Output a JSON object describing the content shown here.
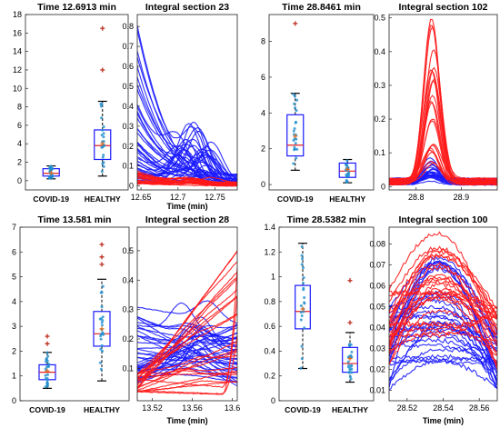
{
  "panels": [
    {
      "kind": "box",
      "title": "Time 12.6913 min",
      "ylim": [
        -1,
        18
      ],
      "yticks": [
        0,
        2,
        4,
        6,
        8,
        10,
        12,
        14,
        16,
        18
      ],
      "categories": [
        "COVID-19",
        "HEALTHY"
      ],
      "boxes": [
        {
          "whisker_low": 0.2,
          "q1": 0.5,
          "median": 0.8,
          "mean": 0.85,
          "q3": 1.3,
          "whisker_high": 1.6,
          "outliers": []
        },
        {
          "whisker_low": 0.5,
          "q1": 2.3,
          "median": 3.8,
          "mean": 4.0,
          "q3": 5.5,
          "whisker_high": 8.6,
          "outliers": [
            12.0,
            16.5
          ]
        }
      ]
    },
    {
      "kind": "lines",
      "title": "Integral section 23",
      "xlim": [
        12.645,
        12.78
      ],
      "ylim": [
        -0.02,
        0.86
      ],
      "xticks": [
        12.65,
        12.7,
        12.75
      ],
      "xticklabels": [
        "12.65",
        "12.7",
        "12.75"
      ],
      "yticks": [
        0,
        0.1,
        0.2,
        0.3,
        0.4,
        0.5,
        0.6,
        0.7,
        0.8
      ],
      "xlabel": "Time (min)",
      "shape": "decay",
      "groups": [
        {
          "color": "#1a1aff",
          "count": 42,
          "start": [
            0.03,
            0.85
          ],
          "end": [
            0.0,
            0.06
          ],
          "hump": [
            0.0,
            0.3
          ]
        },
        {
          "color": "#ff1a1a",
          "count": 24,
          "start": [
            0.01,
            0.08
          ],
          "end": [
            0.0,
            0.02
          ],
          "hump": [
            0.0,
            0.03
          ]
        }
      ]
    },
    {
      "kind": "box",
      "title": "Time 28.8461 min",
      "ylim": [
        -0.3,
        9.5
      ],
      "yticks": [
        0,
        2,
        4,
        6,
        8
      ],
      "categories": [
        "COVID-19",
        "HEALTHY"
      ],
      "boxes": [
        {
          "whisker_low": 0.8,
          "q1": 1.6,
          "median": 2.2,
          "mean": 2.7,
          "q3": 3.9,
          "whisker_high": 5.1,
          "outliers": [
            9.0
          ]
        },
        {
          "whisker_low": 0.1,
          "q1": 0.4,
          "median": 0.75,
          "mean": 0.85,
          "q3": 1.2,
          "whisker_high": 1.4,
          "outliers": []
        }
      ]
    },
    {
      "kind": "lines",
      "title": "Integral section 102",
      "xlim": [
        28.74,
        28.98
      ],
      "ylim": [
        -0.01,
        0.51
      ],
      "xticks": [
        28.8,
        28.9
      ],
      "xticklabels": [
        "28.8",
        "28.9"
      ],
      "yticks": [
        0,
        0.1,
        0.2,
        0.3,
        0.4,
        0.5
      ],
      "xlabel": "",
      "shape": "peak",
      "groups": [
        {
          "color": "#1a1aff",
          "count": 26,
          "peak": [
            0.01,
            0.07
          ]
        },
        {
          "color": "#ff1a1a",
          "count": 22,
          "peak": [
            0.05,
            0.49
          ]
        }
      ]
    },
    {
      "kind": "box",
      "title": "Time 13.581 min",
      "ylim": [
        0,
        7
      ],
      "yticks": [
        0,
        1,
        2,
        3,
        4,
        5,
        6,
        7
      ],
      "categories": [
        "COVID-19",
        "HEALTHY"
      ],
      "boxes": [
        {
          "whisker_low": 0.5,
          "q1": 0.85,
          "median": 1.15,
          "mean": 1.2,
          "q3": 1.45,
          "whisker_high": 1.95,
          "outliers": [
            2.3,
            2.6
          ]
        },
        {
          "whisker_low": 0.8,
          "q1": 2.2,
          "median": 2.7,
          "mean": 2.9,
          "q3": 3.6,
          "whisker_high": 4.9,
          "outliers": [
            5.5,
            5.8,
            6.3
          ]
        }
      ]
    },
    {
      "kind": "lines",
      "title": "Integral section 28",
      "xlim": [
        13.505,
        13.605
      ],
      "ylim": [
        -0.01,
        0.58
      ],
      "xticks": [
        13.52,
        13.56,
        13.6
      ],
      "xticklabels": [
        "13.52",
        "13.56",
        "13.6"
      ],
      "yticks": [
        0.1,
        0.2,
        0.3,
        0.4,
        0.5
      ],
      "xlabel": "Time (min)",
      "shape": "wave",
      "groups": [
        {
          "color": "#1a1aff",
          "count": 38,
          "start": [
            0.05,
            0.33
          ],
          "end": [
            0.04,
            0.26
          ],
          "hump": [
            0.0,
            0.1
          ]
        },
        {
          "color": "#ff1a1a",
          "count": 24,
          "start": [
            0.02,
            0.09
          ],
          "end": [
            0.02,
            0.55
          ],
          "hump": [
            0.0,
            0.02
          ]
        }
      ]
    },
    {
      "kind": "box",
      "title": "Time 28.5382 min",
      "ylim": [
        0,
        1.4
      ],
      "yticks": [
        0,
        0.2,
        0.4,
        0.6,
        0.8,
        1,
        1.2,
        1.4
      ],
      "yticklabels": [
        "0",
        "0.2",
        "0.4",
        "0.6",
        "0.8",
        "1",
        "1.2",
        "1.4"
      ],
      "categories": [
        "COVID-19",
        "HEALTHY"
      ],
      "boxes": [
        {
          "whisker_low": 0.26,
          "q1": 0.58,
          "median": 0.72,
          "mean": 0.74,
          "q3": 0.93,
          "whisker_high": 1.27,
          "outliers": []
        },
        {
          "whisker_low": 0.15,
          "q1": 0.23,
          "median": 0.3,
          "mean": 0.34,
          "q3": 0.43,
          "whisker_high": 0.55,
          "outliers": [
            0.63,
            0.97
          ]
        }
      ]
    },
    {
      "kind": "lines",
      "title": "Integral section 100",
      "xlim": [
        28.51,
        28.57
      ],
      "ylim": [
        0.005,
        0.088
      ],
      "xticks": [
        28.52,
        28.54,
        28.56
      ],
      "xticklabels": [
        "28.52",
        "28.54",
        "28.56"
      ],
      "yticks": [
        0.01,
        0.02,
        0.03,
        0.04,
        0.05,
        0.06,
        0.07,
        0.08
      ],
      "xlabel": "Time (min)",
      "shape": "broad",
      "groups": [
        {
          "color": "#1a1aff",
          "count": 30,
          "start": [
            0.01,
            0.05
          ],
          "mid": [
            0.012,
            0.075
          ],
          "end": [
            0.01,
            0.04
          ]
        },
        {
          "color": "#ff1a1a",
          "count": 26,
          "start": [
            0.02,
            0.06
          ],
          "mid": [
            0.028,
            0.088
          ],
          "end": [
            0.02,
            0.05
          ]
        }
      ]
    }
  ]
}
